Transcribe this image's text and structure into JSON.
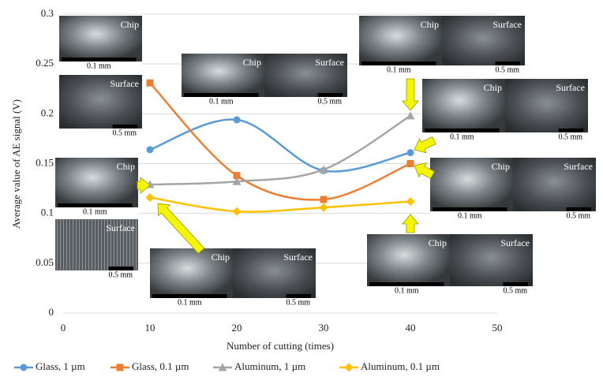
{
  "chart_data": {
    "type": "line",
    "xlabel": "Number of cutting (times)",
    "ylabel": "Average value of AE signal (V)",
    "x": [
      10,
      20,
      30,
      40
    ],
    "xlim": [
      0,
      50
    ],
    "xticks": [
      0,
      10,
      20,
      30,
      40,
      50
    ],
    "ylim": [
      0,
      0.3
    ],
    "yticks": [
      0,
      0.05,
      0.1,
      0.15,
      0.2,
      0.25,
      0.3
    ],
    "grid": true,
    "legend": "bottom",
    "series": [
      {
        "name": "Glass, 1 µm",
        "color": "#5b9bd5",
        "marker": "circle",
        "values": [
          0.164,
          0.194,
          0.143,
          0.161
        ]
      },
      {
        "name": "Glass, 0.1 µm",
        "color": "#ed7d31",
        "marker": "square",
        "values": [
          0.231,
          0.138,
          0.114,
          0.15
        ]
      },
      {
        "name": "Aluminum,  1 µm",
        "color": "#a5a5a5",
        "marker": "triangle",
        "values": [
          0.129,
          0.132,
          0.144,
          0.198
        ]
      },
      {
        "name": "Aluminum,  0.1 µm",
        "color": "#ffc000",
        "marker": "diamond",
        "values": [
          0.116,
          0.102,
          0.106,
          0.112
        ]
      }
    ],
    "insets": [
      {
        "labels": [
          "Chip"
        ],
        "scales": [
          "0.1 mm"
        ]
      },
      {
        "labels": [
          "Surface"
        ],
        "scales": [
          "0.5 mm"
        ]
      },
      {
        "labels": [
          "Chip",
          "Surface"
        ],
        "scales": [
          "0.1 mm",
          "0.5 mm"
        ]
      },
      {
        "labels": [
          "Chip",
          "Surface"
        ],
        "scales": [
          "0.1 mm",
          "0.5 mm"
        ]
      },
      {
        "labels": [
          "Chip",
          "Surface"
        ],
        "scales": [
          "0.1 mm",
          "0.5 mm"
        ]
      },
      {
        "labels": [
          "Chip"
        ],
        "scales": [
          "0.1 mm"
        ]
      },
      {
        "labels": [
          "Surface"
        ],
        "scales": [
          "0.5 mm"
        ]
      },
      {
        "labels": [
          "Chip",
          "Surface"
        ],
        "scales": [
          "0.1 mm",
          "0.5 mm"
        ]
      },
      {
        "labels": [
          "Chip",
          "Surface"
        ],
        "scales": [
          "0.1 mm",
          "0.5 mm"
        ]
      },
      {
        "labels": [
          "Chip",
          "Surface"
        ],
        "scales": [
          "0.1 mm",
          "0.5 mm"
        ]
      }
    ]
  }
}
